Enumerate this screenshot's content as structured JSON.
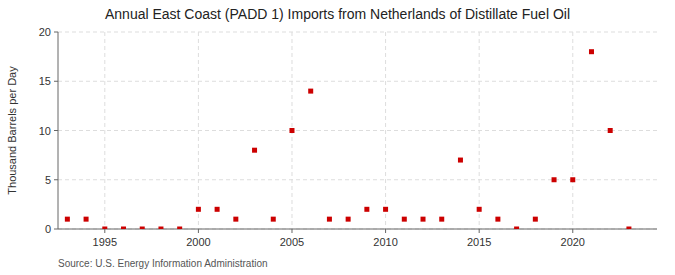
{
  "chart_data": {
    "type": "scatter",
    "title": "Annual East Coast (PADD 1) Imports from Netherlands of Distillate Fuel Oil",
    "ylabel": "Thousand Barrels per Day",
    "source": "Source: U.S. Energy Information Administration",
    "x": [
      1993,
      1994,
      1995,
      1996,
      1997,
      1998,
      1999,
      2000,
      2001,
      2002,
      2003,
      2004,
      2005,
      2006,
      2007,
      2008,
      2009,
      2010,
      2011,
      2012,
      2013,
      2014,
      2015,
      2016,
      2017,
      2018,
      2019,
      2020,
      2021,
      2022,
      2023
    ],
    "values": [
      1,
      1,
      0,
      0,
      0,
      0,
      0,
      2,
      2,
      1,
      8,
      1,
      10,
      14,
      1,
      1,
      2,
      2,
      1,
      1,
      1,
      7,
      2,
      1,
      0,
      1,
      5,
      5,
      18,
      10,
      0
    ],
    "color": "#cc0000",
    "marker": "square",
    "xlim": [
      1992.5,
      2024.5
    ],
    "ylim": [
      0,
      20
    ],
    "xticks": [
      1995,
      2000,
      2005,
      2010,
      2015,
      2020
    ],
    "yticks": [
      0,
      5,
      10,
      15,
      20
    ],
    "grid": true
  }
}
